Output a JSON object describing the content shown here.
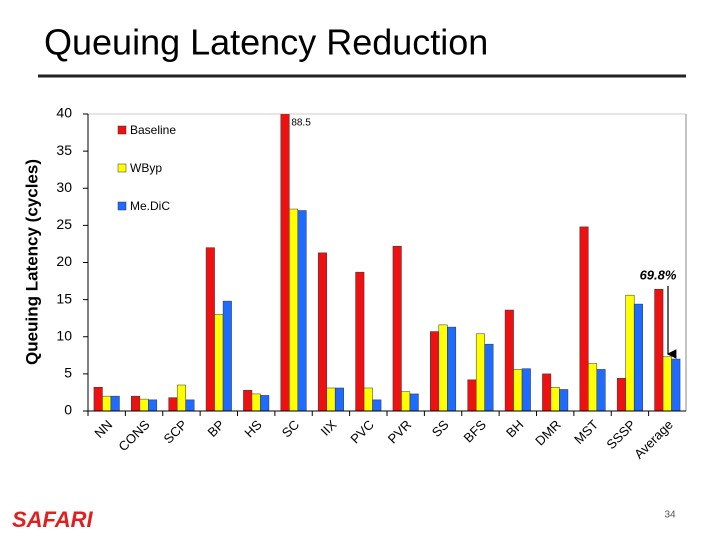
{
  "header": {
    "title": "Queuing Latency Reduction"
  },
  "chart_data": {
    "type": "bar",
    "y_label": "Queuing Latency (cycles)",
    "categories": [
      "NN",
      "CONS",
      "SCP",
      "BP",
      "HS",
      "SC",
      "IIX",
      "PVC",
      "PVR",
      "SS",
      "BFS",
      "BH",
      "DMR",
      "MST",
      "SSSP",
      "Average"
    ],
    "series": [
      {
        "name": "Baseline",
        "color": "#ee1111",
        "values": [
          3.2,
          2.0,
          1.8,
          22.0,
          2.8,
          88.5,
          21.3,
          18.7,
          22.2,
          10.7,
          4.2,
          13.6,
          5.0,
          24.8,
          4.4,
          16.4
        ],
        "value_labels": [
          null,
          null,
          null,
          null,
          null,
          "88.5",
          null,
          null,
          null,
          null,
          null,
          null,
          null,
          null,
          null,
          null
        ]
      },
      {
        "name": "WByp",
        "color": "#ffff00",
        "values": [
          2.0,
          1.6,
          3.5,
          13.0,
          2.3,
          27.2,
          3.1,
          3.1,
          2.6,
          11.6,
          10.4,
          5.6,
          3.2,
          6.4,
          15.6,
          7.3
        ]
      },
      {
        "name": "Me.DiC",
        "color": "#1f6bff",
        "values": [
          2.0,
          1.5,
          1.5,
          14.8,
          2.1,
          27.0,
          3.1,
          1.5,
          2.3,
          11.3,
          9.0,
          5.7,
          2.9,
          5.6,
          14.4,
          7.0
        ]
      }
    ],
    "ylim": [
      0,
      40
    ],
    "yticks": [
      0,
      5,
      10,
      15,
      20,
      25,
      30,
      35,
      40
    ],
    "grid": false,
    "annotation": "69.8%"
  },
  "footer": {
    "logo": "SAFARI",
    "page": "34"
  }
}
